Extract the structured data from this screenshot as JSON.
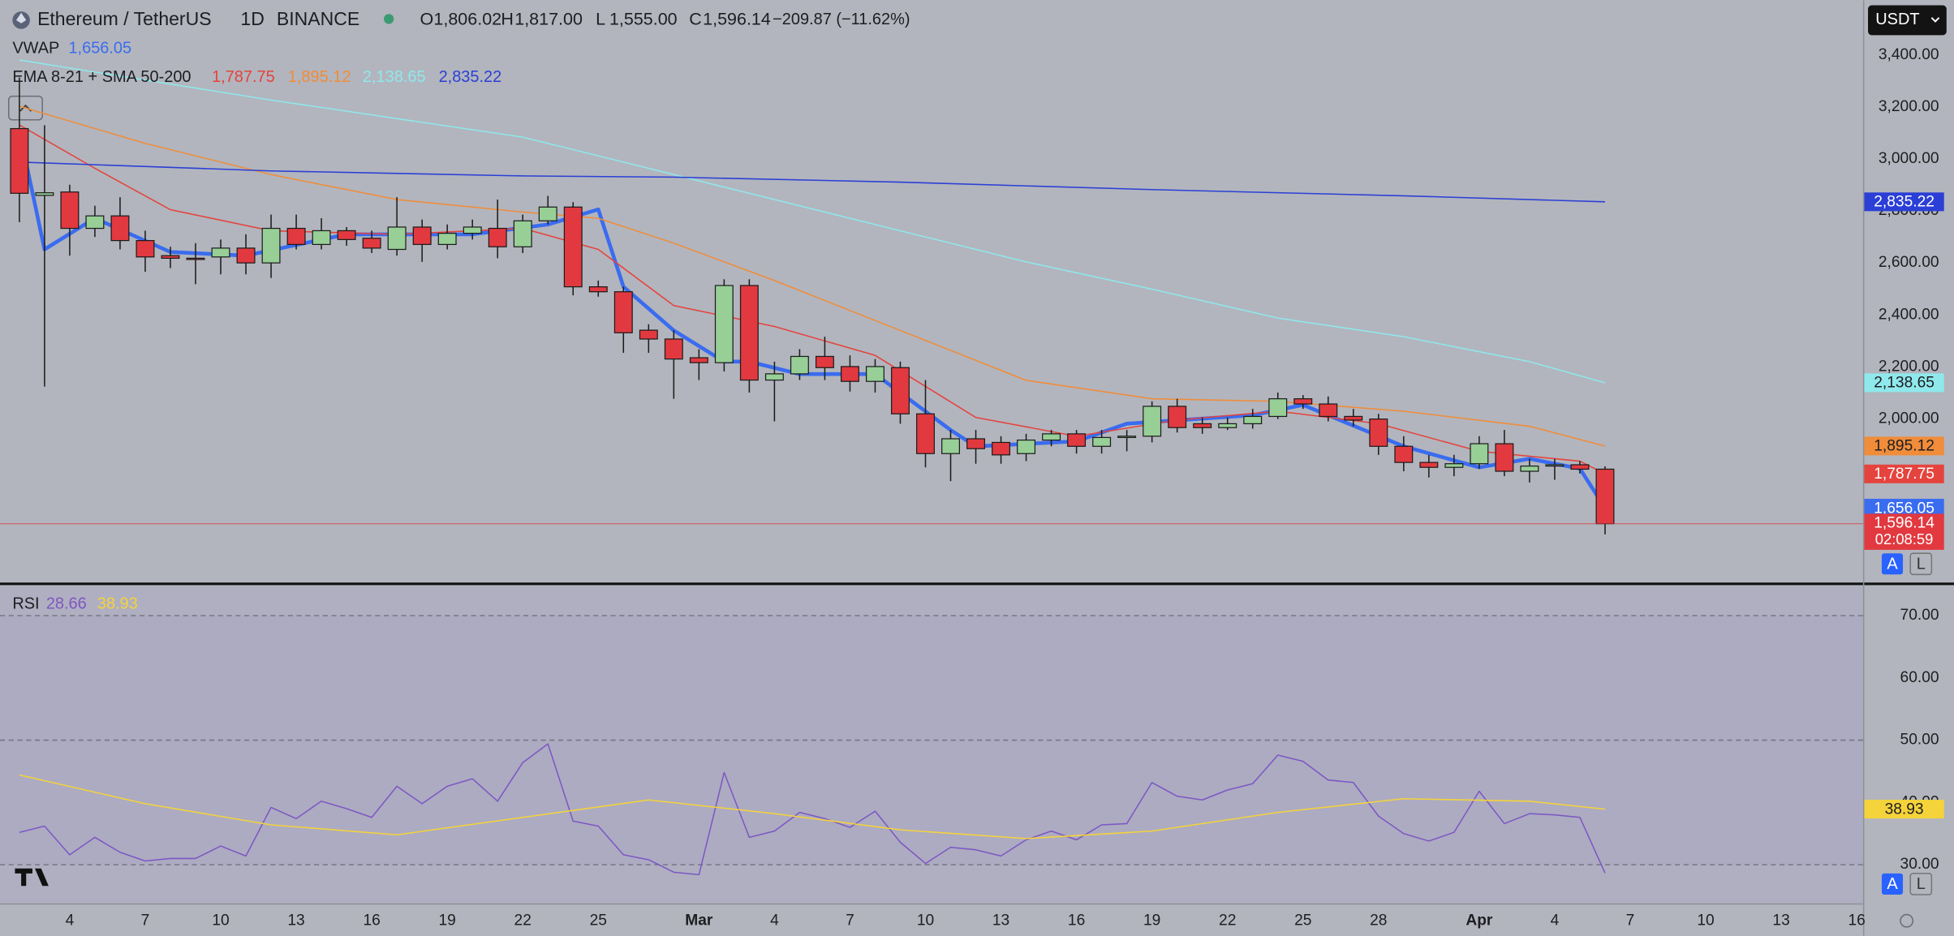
{
  "header": {
    "symbol": "Ethereum / TetherUS",
    "interval": "1D",
    "exchange": "BINANCE",
    "ohlc": [
      {
        "label": "O",
        "value": "1,806.02"
      },
      {
        "label": "H",
        "value": "1,817.00"
      },
      {
        "label": "L",
        "value": "1,555.00"
      },
      {
        "label": "C",
        "value": "1,596.14"
      }
    ],
    "change": "−209.87 (−11.62%)"
  },
  "currency": "USDT",
  "countdown": "02:08:59",
  "scale_buttons": [
    "A",
    "L"
  ],
  "chart_data": [
    {
      "type": "candlestick",
      "x": [
        0,
        1,
        2,
        3,
        4,
        5,
        6,
        7,
        8,
        9,
        10,
        11,
        12,
        13,
        14,
        15,
        16,
        17,
        18,
        19,
        20,
        21,
        22,
        23,
        24,
        25,
        26,
        27,
        28,
        29,
        30,
        31,
        32,
        33,
        34,
        35,
        36,
        37,
        38,
        39,
        40,
        41,
        42,
        43,
        44,
        45,
        46,
        47,
        48,
        49,
        50,
        51,
        52,
        53,
        54,
        55,
        56,
        57,
        58,
        59,
        60,
        61,
        62,
        63
      ],
      "open": [
        3117,
        2860,
        2873,
        2733,
        2781,
        2686,
        2628,
        2618,
        2623,
        2657,
        2600,
        2733,
        2671,
        2724,
        2695,
        2652,
        2738,
        2671,
        2714,
        2733,
        2662,
        2762,
        2815,
        2508,
        2489,
        2341,
        2307,
        2235,
        2216,
        2513,
        2149,
        2173,
        2240,
        2201,
        2144,
        2197,
        2019,
        1866,
        1923,
        1909,
        1866,
        1918,
        1942,
        1894,
        1928,
        1933,
        2048,
        1981,
        1966,
        1981,
        2009,
        2077,
        2057,
        2009,
        1999,
        1894,
        1832,
        1813,
        1827,
        1904,
        1798,
        1818,
        1823,
        1806.02
      ],
      "high": [
        3314,
        3130,
        2901,
        2820,
        2853,
        2724,
        2662,
        2676,
        2690,
        2710,
        2786,
        2786,
        2772,
        2738,
        2724,
        2853,
        2767,
        2748,
        2767,
        2844,
        2786,
        2858,
        2834,
        2532,
        2508,
        2364,
        2340,
        2268,
        2537,
        2537,
        2220,
        2268,
        2316,
        2244,
        2230,
        2220,
        2149,
        1957,
        1957,
        1933,
        1942,
        1957,
        1957,
        1957,
        1957,
        2067,
        2077,
        2005,
        2005,
        2038,
        2101,
        2091,
        2086,
        2038,
        2019,
        1933,
        1861,
        1861,
        1933,
        1957,
        1846,
        1846,
        1837,
        1817
      ],
      "low": [
        2757,
        2124,
        2628,
        2700,
        2652,
        2566,
        2580,
        2518,
        2556,
        2556,
        2542,
        2652,
        2652,
        2666,
        2638,
        2628,
        2604,
        2652,
        2690,
        2618,
        2638,
        2748,
        2475,
        2470,
        2254,
        2254,
        2077,
        2149,
        2182,
        2101,
        1990,
        2149,
        2149,
        2105,
        2101,
        1981,
        1813,
        1760,
        1827,
        1827,
        1837,
        1894,
        1866,
        1866,
        1875,
        1909,
        1947,
        1942,
        1957,
        1962,
        1999,
        2038,
        1990,
        1971,
        1861,
        1798,
        1774,
        1779,
        1808,
        1779,
        1755,
        1765,
        1789,
        1555
      ],
      "close": [
        2868,
        2870,
        2733,
        2781,
        2686,
        2623,
        2618,
        2614,
        2657,
        2600,
        2733,
        2671,
        2724,
        2690,
        2657,
        2738,
        2671,
        2714,
        2738,
        2662,
        2762,
        2815,
        2508,
        2489,
        2331,
        2307,
        2230,
        2216,
        2513,
        2149,
        2173,
        2240,
        2197,
        2144,
        2201,
        2019,
        1866,
        1923,
        1885,
        1861,
        1918,
        1942,
        1894,
        1928,
        1933,
        2048,
        1966,
        1966,
        1981,
        2009,
        2077,
        2057,
        2009,
        1995,
        1894,
        1832,
        1813,
        1827,
        1904,
        1798,
        1818,
        1823,
        1806,
        1596.14
      ],
      "close_label": "1,596.14",
      "up_color": "#97cf97",
      "down_color": "#e1393f",
      "wick_color": "#1c1c1c",
      "xlim": [
        -0.77,
        73.25
      ],
      "xticks": [
        {
          "value": 2,
          "label": "4"
        },
        {
          "value": 5,
          "label": "7"
        },
        {
          "value": 8,
          "label": "10"
        },
        {
          "value": 11,
          "label": "13"
        },
        {
          "value": 14,
          "label": "16"
        },
        {
          "value": 17,
          "label": "19"
        },
        {
          "value": 20,
          "label": "22"
        },
        {
          "value": 23,
          "label": "25"
        },
        {
          "value": 27,
          "label": "Mar"
        },
        {
          "value": 30,
          "label": "4"
        },
        {
          "value": 33,
          "label": "7"
        },
        {
          "value": 36,
          "label": "10"
        },
        {
          "value": 39,
          "label": "13"
        },
        {
          "value": 42,
          "label": "16"
        },
        {
          "value": 45,
          "label": "19"
        },
        {
          "value": 48,
          "label": "22"
        },
        {
          "value": 51,
          "label": "25"
        },
        {
          "value": 54,
          "label": "28"
        },
        {
          "value": 58,
          "label": "Apr"
        },
        {
          "value": 61,
          "label": "4"
        },
        {
          "value": 64,
          "label": "7"
        },
        {
          "value": 67,
          "label": "10"
        },
        {
          "value": 70,
          "label": "13"
        },
        {
          "value": 73,
          "label": "16"
        }
      ],
      "ylim": [
        1367,
        3611
      ],
      "yticks": [
        {
          "value": 3400,
          "label": "3,400.00"
        },
        {
          "value": 3200,
          "label": "3,200.00"
        },
        {
          "value": 3000,
          "label": "3,000.00"
        },
        {
          "value": 2800,
          "label": "2,800.00"
        },
        {
          "value": 2600,
          "label": "2,600.00"
        },
        {
          "value": 2400,
          "label": "2,400.00"
        },
        {
          "value": 2200,
          "label": "2,200.00"
        },
        {
          "value": 2000,
          "label": "2,000.00"
        }
      ],
      "indicator_title": "EMA 8-21 + SMA 50-200",
      "series": [
        {
          "name": "VWAP",
          "color": "#3a6cf0",
          "width": 3,
          "x": [
            0,
            1,
            3,
            6,
            9,
            13,
            18,
            21,
            23,
            24,
            26,
            28,
            29,
            31,
            34,
            37,
            38,
            42,
            44,
            49,
            51,
            55,
            58,
            60,
            62,
            63
          ],
          "values": [
            3108,
            2652,
            2772,
            2642,
            2628,
            2710,
            2710,
            2748,
            2806,
            2508,
            2340,
            2220,
            2220,
            2172,
            2172,
            1957,
            1894,
            1913,
            1981,
            2014,
            2053,
            1894,
            1813,
            1846,
            1808,
            1656.05
          ],
          "value_label": "1,656.05"
        },
        {
          "color": "#e5433d",
          "width": 1,
          "x": [
            0,
            3,
            6,
            10,
            15,
            20,
            23,
            26,
            30,
            34,
            38,
            42,
            46,
            50,
            54,
            58,
            62,
            63
          ],
          "values": [
            3131,
            2964,
            2805,
            2724,
            2710,
            2733,
            2652,
            2436,
            2355,
            2244,
            2005,
            1933,
            1995,
            2029,
            1981,
            1875,
            1837,
            1787.75
          ],
          "value_label": "1,787.75"
        },
        {
          "color": "#f08c3a",
          "width": 1,
          "x": [
            0,
            5,
            10,
            15,
            20,
            23,
            26,
            30,
            35,
            40,
            45,
            50,
            55,
            60,
            63
          ],
          "values": [
            3203,
            3060,
            2940,
            2844,
            2796,
            2772,
            2676,
            2532,
            2340,
            2148,
            2077,
            2067,
            2029,
            1971,
            1895.12
          ],
          "value_label": "1,895.12"
        },
        {
          "color": "#8fe8ec",
          "width": 1,
          "x": [
            0,
            10,
            20,
            25,
            30,
            35,
            40,
            45,
            50,
            55,
            60,
            63
          ],
          "values": [
            3381,
            3227,
            3084,
            2964,
            2844,
            2724,
            2604,
            2499,
            2388,
            2316,
            2220,
            2138.65
          ],
          "value_label": "2,138.65"
        },
        {
          "color": "#2b3fd6",
          "width": 1,
          "x": [
            0,
            10,
            20,
            26,
            35,
            45,
            55,
            63
          ],
          "values": [
            2988,
            2954,
            2935,
            2930,
            2911,
            2882,
            2858,
            2835.22
          ],
          "value_label": "2,835.22"
        }
      ]
    },
    {
      "type": "line",
      "title": "RSI",
      "ylim": [
        23.8,
        74.8
      ],
      "yticks": [
        {
          "value": 70,
          "label": "70.00"
        },
        {
          "value": 60,
          "label": "60.00"
        },
        {
          "value": 50,
          "label": "50.00"
        },
        {
          "value": 40,
          "label": "40.00"
        },
        {
          "value": 30,
          "label": "30.00"
        }
      ],
      "levels": [
        70,
        50,
        30
      ],
      "band": [
        70,
        30
      ],
      "band_color": "#a9a6c4",
      "series": [
        {
          "color": "#7e57c2",
          "width": 1,
          "x": [
            0,
            1,
            2,
            3,
            4,
            5,
            6,
            7,
            8,
            9,
            10,
            11,
            12,
            13,
            14,
            15,
            16,
            17,
            18,
            19,
            20,
            21,
            22,
            23,
            24,
            25,
            26,
            27,
            28,
            29,
            30,
            31,
            32,
            33,
            34,
            35,
            36,
            37,
            38,
            39,
            40,
            41,
            42,
            43,
            44,
            45,
            46,
            47,
            48,
            49,
            50,
            51,
            52,
            53,
            54,
            55,
            56,
            57,
            58,
            59,
            60,
            61,
            62,
            63
          ],
          "values": [
            35.2,
            36.2,
            31.6,
            34.4,
            32,
            30.6,
            31,
            31,
            33,
            31.4,
            39.2,
            37.4,
            40.2,
            39,
            37.6,
            42.6,
            39.8,
            42.6,
            43.8,
            40.2,
            46.4,
            49.4,
            37,
            36.2,
            31.6,
            30.8,
            28.8,
            28.4,
            44.8,
            34.4,
            35.4,
            38.4,
            37.4,
            36,
            38.6,
            33.6,
            30.2,
            32.8,
            32.4,
            31.4,
            34,
            35.4,
            34,
            36.4,
            36.6,
            43.2,
            41,
            40.4,
            42,
            43,
            47.6,
            46.6,
            43.6,
            43.2,
            37.8,
            35,
            33.8,
            35.2,
            41.8,
            36.6,
            38.2,
            38,
            37.6,
            28.66
          ]
        },
        {
          "color": "#f5d33a",
          "width": 1,
          "x": [
            0,
            5,
            10,
            15,
            20,
            25,
            30,
            35,
            40,
            45,
            50,
            55,
            60,
            63
          ],
          "values": [
            44.4,
            39.8,
            36.4,
            34.8,
            37.6,
            40.4,
            38.2,
            35.6,
            34.2,
            35.4,
            38.4,
            40.6,
            40.2,
            38.93
          ],
          "badge": true
        }
      ]
    }
  ]
}
